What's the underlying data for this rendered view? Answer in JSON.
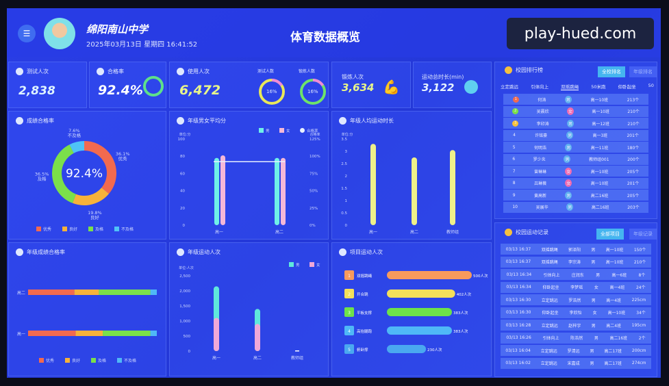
{
  "header": {
    "school": "绵阳南山中学",
    "datetime": "2025年03月13日 星期四 16:41:52",
    "title": "体育数据概览"
  },
  "watermark": "play-hued.com",
  "stats": {
    "tests": {
      "label": "测试人次",
      "value": "2,838"
    },
    "pass": {
      "label": "合格率",
      "value": "92.4%",
      "ring": 0.924
    },
    "usage": {
      "label": "使用人次",
      "value": "6,472",
      "ring1_label": "测试人数",
      "ring1": "16%",
      "ring2_label": "锻炼人数",
      "ring2": "16%"
    },
    "exercise": {
      "label": "锻炼人次",
      "value": "3,634"
    },
    "duration": {
      "label": "运动总时长(min)",
      "value": "3,122"
    }
  },
  "leaderboard": {
    "title": "校园排行榜",
    "btn_active": "全校排名",
    "btn_other": "年级排名",
    "tabs": [
      "立定跳远",
      "引体向上",
      "双摇跳绳",
      "50米跑",
      "仰卧起坐",
      "50"
    ],
    "active_tab": 2,
    "rows": [
      [
        "1",
        "何涛",
        "男",
        "高一10班",
        "213个"
      ],
      [
        "2",
        "吴晨欣",
        "女",
        "高一10班",
        "210个"
      ],
      [
        "3",
        "李印涛",
        "男",
        "高一12班",
        "210个"
      ],
      [
        "4",
        "许铭豪",
        "男",
        "高一3班",
        "201个"
      ],
      [
        "5",
        "何明浩",
        "男",
        "高一11班",
        "180个"
      ],
      [
        "6",
        "罗少炎",
        "男",
        "教师组001",
        "200个"
      ],
      [
        "7",
        "曾琳琳",
        "女",
        "高一10班",
        "205个"
      ],
      [
        "8",
        "吕琳薇",
        "女",
        "高一10班",
        "201个"
      ],
      [
        "9",
        "黄高新",
        "男",
        "高二16班",
        "205个"
      ],
      [
        "10",
        "吴展华",
        "男",
        "高二16班",
        "203个"
      ]
    ]
  },
  "records": {
    "title": "校园运动记录",
    "btn_active": "全部项目",
    "btn_other": "年级记录",
    "rows": [
      [
        "03/13 16:37",
        "双摇跳绳",
        "郭泽阳",
        "男",
        "高一10班",
        "150个"
      ],
      [
        "03/13 16:37",
        "双摇跳绳",
        "李宗涛",
        "男",
        "高一10班",
        "210个"
      ],
      [
        "03/13 16:34",
        "引体向上",
        "庄润东",
        "男",
        "高一6班",
        "8个"
      ],
      [
        "03/13 16:34",
        "仰卧起坐",
        "李梦瑶",
        "女",
        "高一4班",
        "24个"
      ],
      [
        "03/13 16:30",
        "立定跳远",
        "罗浩然",
        "男",
        "高一4班",
        "225cm"
      ],
      [
        "03/13 16:30",
        "仰卧起坐",
        "李欣怡",
        "女",
        "高一10班",
        "34个"
      ],
      [
        "03/13 16:28",
        "立定跳远",
        "赵梓宇",
        "男",
        "高二4班",
        "195cm"
      ],
      [
        "03/13 16:26",
        "引体向上",
        "陈浩然",
        "男",
        "高二16班",
        "2个"
      ],
      [
        "03/13 16:04",
        "立定跳远",
        "罗清远",
        "男",
        "高二17班",
        "200cm"
      ],
      [
        "03/13 16:02",
        "立定跳远",
        "宋嘉成",
        "男",
        "高二17班",
        "274cm"
      ]
    ]
  },
  "chart_data": [
    {
      "id": "pass_donut",
      "type": "pie",
      "title": "成绩合格率",
      "center_label": "92.4%",
      "categories": [
        "优秀",
        "良好",
        "及格",
        "不及格"
      ],
      "values": [
        36.1,
        19.8,
        36.5,
        7.6
      ],
      "colors": [
        "#f26a4f",
        "#f7b23a",
        "#7be04a",
        "#4fc3f7"
      ]
    },
    {
      "id": "gender_avg",
      "type": "bar",
      "title": "年级男女平均分",
      "ylabel": "单位:分",
      "y2label": "合格率",
      "categories": [
        "高一",
        "高二"
      ],
      "ylim": [
        0,
        100
      ],
      "yticks": [
        "0",
        "20",
        "40",
        "60",
        "80",
        "100"
      ],
      "y2ticks": [
        "0%",
        "25%",
        "50%",
        "75%",
        "100%",
        "125%"
      ],
      "series": [
        {
          "name": "男",
          "values": [
            78,
            78
          ],
          "color": "#6ff0e8"
        },
        {
          "name": "女",
          "values": [
            81,
            78
          ],
          "color": "#f4b8d8"
        },
        {
          "name": "合格率",
          "type": "line",
          "values": [
            92,
            92
          ],
          "color": "#e8f0ff"
        }
      ]
    },
    {
      "id": "avg_duration",
      "type": "bar",
      "title": "年级人均运动时长",
      "ylabel": "单位:分",
      "categories": [
        "高一",
        "高二",
        "教师组"
      ],
      "ylim": [
        0,
        3.5
      ],
      "yticks": [
        "0",
        "0.5",
        "1",
        "1.5",
        "2",
        "2.5",
        "3",
        "3.5"
      ],
      "values": [
        3.3,
        2.75,
        3.05
      ],
      "color": "#eef08a"
    },
    {
      "id": "grade_pass",
      "type": "bar",
      "title": "年级成绩合格率",
      "categories": [
        "高二",
        "高一"
      ],
      "legend": [
        "优秀",
        "良好",
        "及格",
        "不及格"
      ],
      "colors": [
        "#f26a4f",
        "#f7b23a",
        "#7be04a",
        "#4fb8f7"
      ],
      "series_values": [
        [
          36,
          19,
          40,
          5
        ],
        [
          37,
          21,
          37,
          5
        ]
      ]
    },
    {
      "id": "grade_people",
      "type": "bar",
      "title": "年级运动人次",
      "ylabel": "单位:人次",
      "categories": [
        "高一",
        "高二",
        "教师组"
      ],
      "ylim": [
        0,
        2500
      ],
      "yticks": [
        "0",
        "500",
        "1,000",
        "1,500",
        "2,000",
        "2,500"
      ],
      "series": [
        {
          "name": "男",
          "values": [
            1050,
            500,
            0
          ],
          "color": "#5fe8dc"
        },
        {
          "name": "女",
          "values": [
            1100,
            900,
            0
          ],
          "color": "#f0a8d8"
        }
      ]
    },
    {
      "id": "project_people",
      "type": "bar",
      "title": "项目运动人次",
      "categories": [
        "双摇跳绳",
        "开合跳",
        "平板支撑",
        "高抬腿跑",
        "俯卧撑"
      ],
      "values": [
        500,
        402,
        383,
        383,
        230
      ],
      "value_labels": [
        "500人次",
        "402人次",
        "383人次",
        "383人次",
        "230人次"
      ],
      "colors": [
        "#f79a5c",
        "#f4e05a",
        "#6ee24a",
        "#4fb8f7",
        "#4aa8f0"
      ]
    }
  ]
}
